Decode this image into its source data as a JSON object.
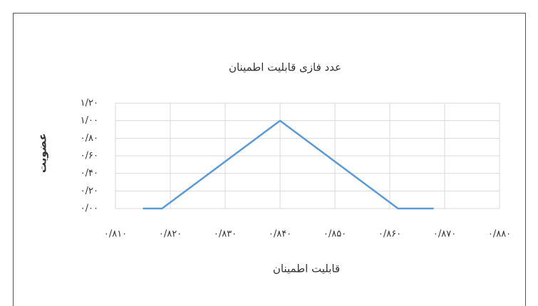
{
  "chart_data": {
    "type": "line",
    "title": "عدد فازی قابلیت اطمینان",
    "x_label": "قابلیت اطمینان",
    "y_label": "عضویت",
    "x": [
      0.815,
      0.8185,
      0.84,
      0.8615,
      0.868
    ],
    "values": [
      0,
      0,
      1,
      0,
      0
    ],
    "color": "#5b9bd5",
    "xlim": [
      0.81,
      0.88
    ],
    "xticks": [
      {
        "value": 0.81,
        "label": "۰/۸۱۰"
      },
      {
        "value": 0.82,
        "label": "۰/۸۲۰"
      },
      {
        "value": 0.83,
        "label": "۰/۸۳۰"
      },
      {
        "value": 0.84,
        "label": "۰/۸۴۰"
      },
      {
        "value": 0.85,
        "label": "۰/۸۵۰"
      },
      {
        "value": 0.86,
        "label": "۰/۸۶۰"
      },
      {
        "value": 0.87,
        "label": "۰/۸۷۰"
      },
      {
        "value": 0.88,
        "label": "۰/۸۸۰"
      }
    ],
    "ylim": [
      0,
      1.2
    ],
    "yticks": [
      {
        "value": 0,
        "label": "۰/۰۰"
      },
      {
        "value": 0.2,
        "label": "۰/۲۰"
      },
      {
        "value": 0.4,
        "label": "۰/۴۰"
      },
      {
        "value": 0.6,
        "label": "۰/۶۰"
      },
      {
        "value": 0.8,
        "label": "۰/۸۰"
      },
      {
        "value": 1,
        "label": "۱/۰۰"
      },
      {
        "value": 1.2,
        "label": "۱/۲۰"
      }
    ],
    "grid": true
  }
}
